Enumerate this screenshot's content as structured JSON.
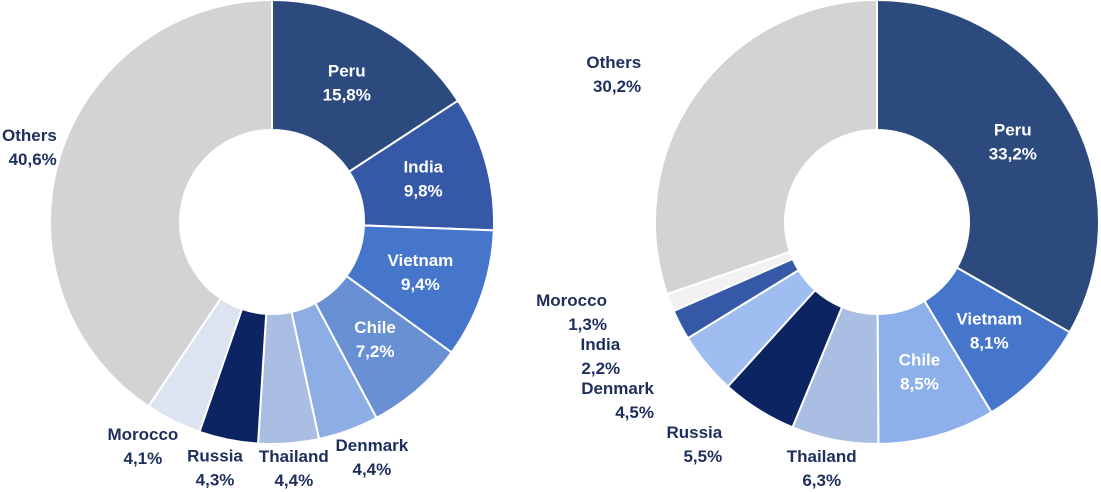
{
  "chart_data": [
    {
      "type": "donut",
      "categories": [
        "Peru",
        "India",
        "Vietnam",
        "Chile",
        "Denmark",
        "Thailand",
        "Russia",
        "Morocco",
        "Others"
      ],
      "values": [
        15.8,
        9.8,
        9.4,
        7.2,
        4.4,
        4.4,
        4.3,
        4.1,
        40.6
      ],
      "value_labels": [
        "15,8%",
        "9,8%",
        "9,4%",
        "7,2%",
        "4,4%",
        "4,4%",
        "4,3%",
        "4,1%",
        "40,6%"
      ],
      "colors": [
        "#2d4a7f",
        "#3559a6",
        "#4676cc",
        "#6a90d4",
        "#8daee4",
        "#a9bee2",
        "#0c2562",
        "#dde4f1",
        "#d3d3d3"
      ],
      "label_position": [
        "inside",
        "inside",
        "inside",
        "inside",
        "outside",
        "outside",
        "outside",
        "outside",
        "outside"
      ],
      "bold": [
        false,
        false,
        false,
        false,
        false,
        false,
        true,
        false,
        false
      ]
    },
    {
      "type": "donut",
      "categories": [
        "Peru",
        "Vietnam",
        "Chile",
        "Thailand",
        "Russia",
        "Denmark",
        "India",
        "Morocco",
        "Others"
      ],
      "values": [
        33.2,
        8.1,
        8.5,
        6.3,
        5.5,
        4.5,
        2.2,
        1.3,
        30.2
      ],
      "value_labels": [
        "33,2%",
        "8,1%",
        "8,5%",
        "6,3%",
        "5,5%",
        "4,5%",
        "2,2%",
        "1,3%",
        "30,2%"
      ],
      "colors": [
        "#2d4a7f",
        "#4676cc",
        "#8eb0ea",
        "#a9bee2",
        "#0c2562",
        "#a0bdf2",
        "#3559a6",
        "#f2f2f2",
        "#d3d3d3"
      ],
      "label_position": [
        "inside",
        "inside",
        "inside",
        "outside",
        "outside",
        "outside",
        "outside",
        "outside",
        "outside"
      ],
      "bold": [
        false,
        false,
        false,
        false,
        true,
        false,
        false,
        false,
        false
      ]
    }
  ]
}
